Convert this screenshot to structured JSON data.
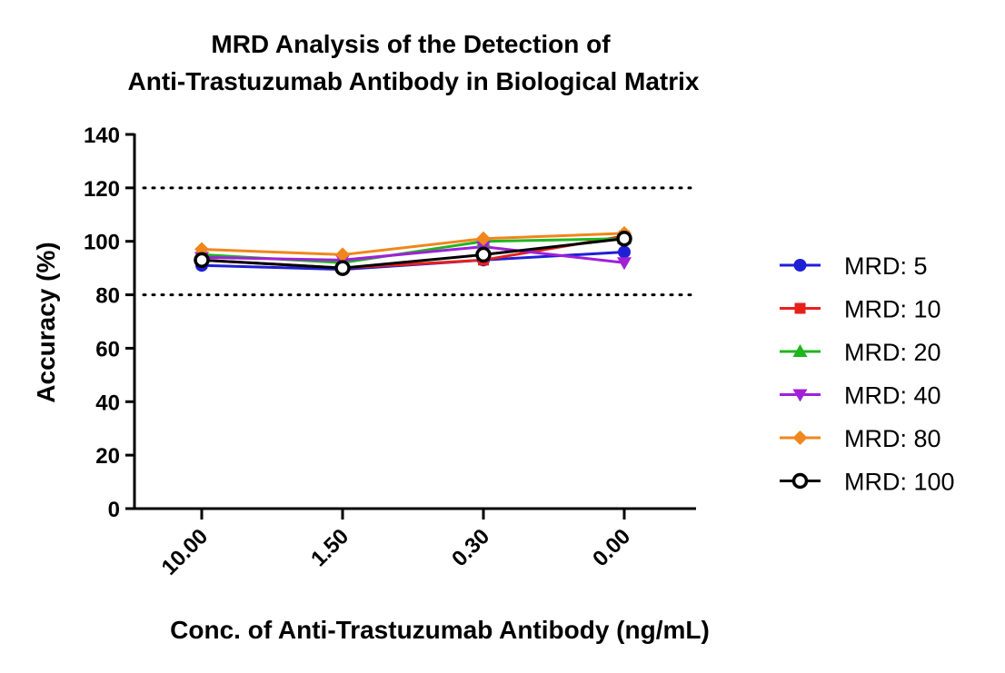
{
  "chart_data": {
    "type": "line",
    "title": [
      "MRD Analysis of the Detection of",
      "Anti-Trastuzumab Antibody in Biological Matrix"
    ],
    "xlabel": "Conc. of Anti-Trastuzumab Antibody (ng/mL)",
    "ylabel": "Accuracy (%)",
    "categories": [
      "10.00",
      "1.50",
      "0.30",
      "0.00"
    ],
    "ylim": [
      0,
      140
    ],
    "yticks": [
      "0",
      "20",
      "40",
      "60",
      "80",
      "100",
      "120",
      "140"
    ],
    "reference_lines": [
      80,
      120
    ],
    "legend_position": "right",
    "series": [
      {
        "name": "MRD: 5",
        "values": [
          91,
          89.5,
          93,
          96
        ],
        "color": "#1f1fd6",
        "marker": "circle"
      },
      {
        "name": "MRD: 10",
        "values": [
          93,
          90,
          93,
          102
        ],
        "color": "#e8201c",
        "marker": "square"
      },
      {
        "name": "MRD: 20",
        "values": [
          95,
          92,
          100,
          101
        ],
        "color": "#1fb51f",
        "marker": "triangle-up"
      },
      {
        "name": "MRD: 40",
        "values": [
          94,
          93,
          98,
          92
        ],
        "color": "#a020d8",
        "marker": "triangle-down"
      },
      {
        "name": "MRD: 80",
        "values": [
          97,
          95,
          101,
          103
        ],
        "color": "#f0861c",
        "marker": "diamond"
      },
      {
        "name": "MRD: 100",
        "values": [
          93,
          90,
          95,
          101
        ],
        "color": "#000000",
        "marker": "open-circle"
      }
    ]
  }
}
